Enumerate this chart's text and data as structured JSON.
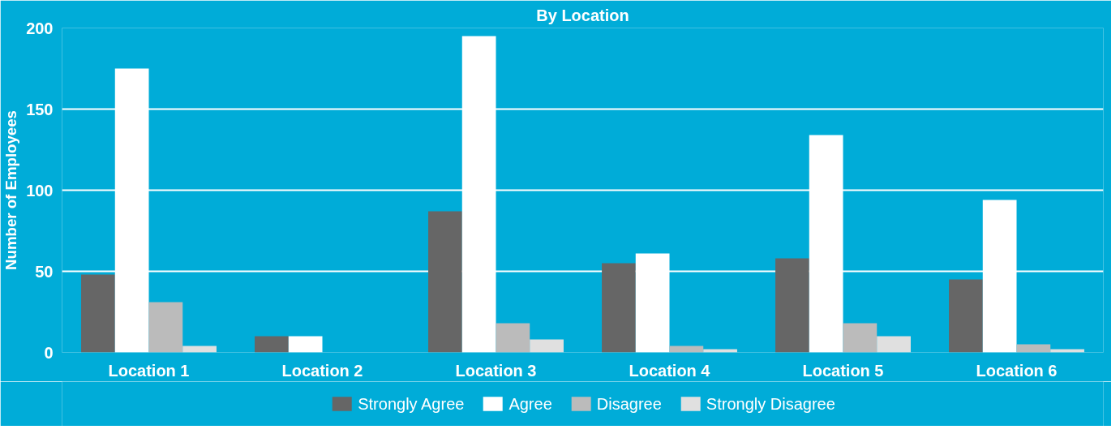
{
  "chart_data": {
    "type": "bar",
    "title": "By Location",
    "ylabel": "Number of Employees",
    "categories": [
      "Location 1",
      "Location 2",
      "Location 3",
      "Location 4",
      "Location 5",
      "Location 6"
    ],
    "series": [
      {
        "name": "Strongly Agree",
        "color": "#666666",
        "values": [
          48,
          10,
          87,
          55,
          58,
          45
        ]
      },
      {
        "name": "Agree",
        "color": "#ffffff",
        "values": [
          175,
          10,
          195,
          61,
          134,
          94
        ]
      },
      {
        "name": "Disagree",
        "color": "#bbbbbb",
        "values": [
          31,
          0,
          18,
          4,
          18,
          5
        ]
      },
      {
        "name": "Strongly Disagree",
        "color": "#e0e0e0",
        "values": [
          4,
          0,
          8,
          2,
          10,
          2
        ]
      }
    ],
    "ylim": [
      0,
      200
    ],
    "yticks": [
      0,
      50,
      100,
      150,
      200
    ],
    "grid": "y",
    "legend": "bottom"
  }
}
